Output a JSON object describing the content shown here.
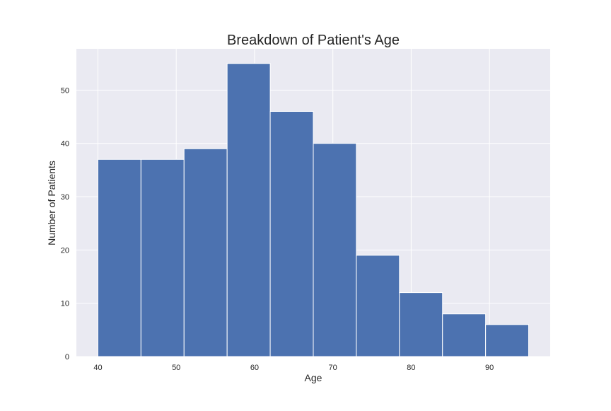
{
  "chart_data": {
    "type": "bar",
    "title": "Breakdown of Patient's Age",
    "xlabel": "Age",
    "ylabel": "Number of Patients",
    "bins": [
      {
        "x0": 40.0,
        "x1": 45.5,
        "count": 37
      },
      {
        "x0": 45.5,
        "x1": 51.0,
        "count": 37
      },
      {
        "x0": 51.0,
        "x1": 56.5,
        "count": 39
      },
      {
        "x0": 56.5,
        "x1": 62.0,
        "count": 55
      },
      {
        "x0": 62.0,
        "x1": 67.5,
        "count": 46
      },
      {
        "x0": 67.5,
        "x1": 73.0,
        "count": 40
      },
      {
        "x0": 73.0,
        "x1": 78.5,
        "count": 19
      },
      {
        "x0": 78.5,
        "x1": 84.0,
        "count": 12
      },
      {
        "x0": 84.0,
        "x1": 89.5,
        "count": 8
      },
      {
        "x0": 89.5,
        "x1": 95.0,
        "count": 6
      }
    ],
    "xticks": [
      40,
      50,
      60,
      70,
      80,
      90
    ],
    "yticks": [
      0,
      10,
      20,
      30,
      40,
      50
    ],
    "xlim": [
      37.25,
      97.75
    ],
    "ylim": [
      0,
      57.75
    ],
    "grid": true,
    "colors": {
      "bar": "#4c72b0",
      "background": "#eaeaf2",
      "grid": "#ffffff",
      "text": "#262626"
    }
  }
}
